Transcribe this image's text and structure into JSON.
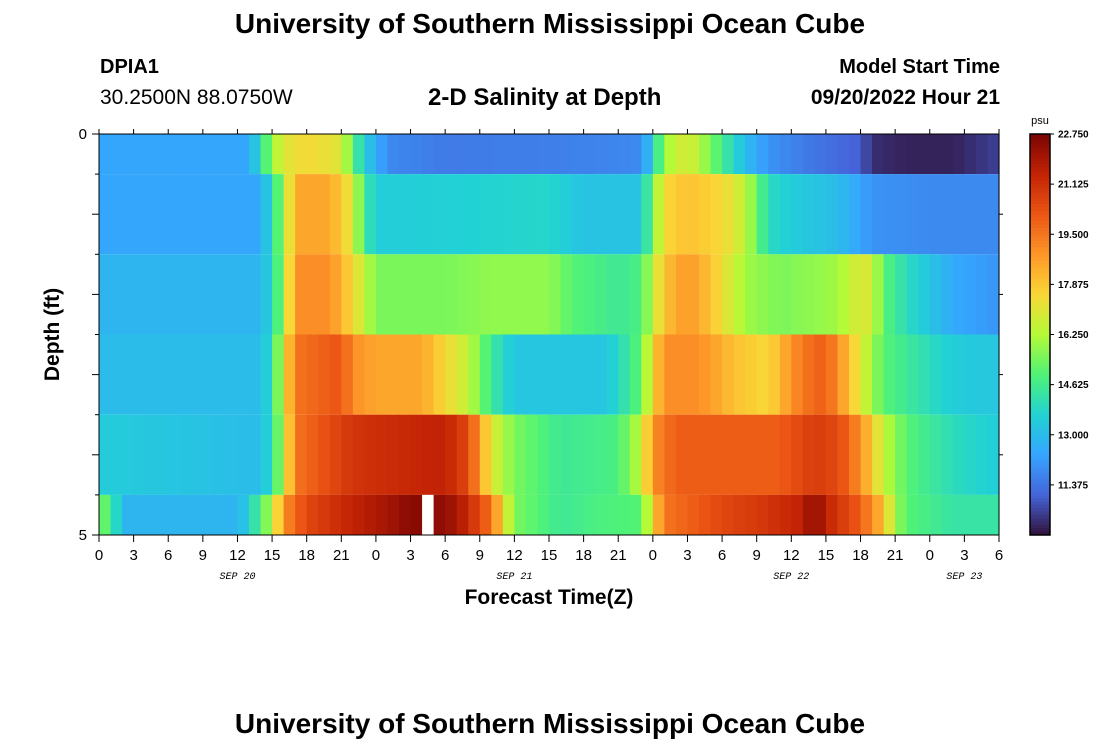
{
  "header": {
    "title": "University of Southern Mississippi Ocean Cube",
    "station": "DPIA1",
    "coords": "30.2500N  88.0750W",
    "subtitle": "2-D Salinity at Depth",
    "model_start_label": "Model Start Time",
    "model_start_value": "09/20/2022 Hour 21"
  },
  "footer": {
    "title": "University of Southern Mississippi Ocean Cube"
  },
  "chart_data": {
    "type": "heatmap",
    "xlabel": "Forecast Time(Z)",
    "ylabel": "Depth (ft)",
    "ylim": [
      5,
      0
    ],
    "y_tick_labels": [
      "0",
      "5"
    ],
    "x_tick_labels": [
      "0",
      "3",
      "6",
      "9",
      "12",
      "15",
      "18",
      "21",
      "0",
      "3",
      "6",
      "9",
      "12",
      "15",
      "18",
      "21",
      "0",
      "3",
      "6",
      "9",
      "12",
      "15",
      "18",
      "21",
      "0",
      "3",
      "6"
    ],
    "date_labels": [
      {
        "label": "SEP 20",
        "hour": 12
      },
      {
        "label": "SEP 21",
        "hour": 36
      },
      {
        "label": "SEP 22",
        "hour": 60
      },
      {
        "label": "SEP 23",
        "hour": 75
      }
    ],
    "x_range_hours": [
      0,
      78
    ],
    "colorbar": {
      "unit": "psu",
      "min": 9.75,
      "max": 22.75,
      "tick_labels": [
        "22.750",
        "21.125",
        "19.500",
        "17.875",
        "16.250",
        "14.625",
        "13.000",
        "11.375"
      ]
    },
    "missing": [
      {
        "hour": 28,
        "depth_layer": 5
      }
    ],
    "layers": [
      {
        "depth_range": [
          0,
          0.5
        ],
        "keyframes": [
          [
            0,
            12.4
          ],
          [
            13,
            12.4
          ],
          [
            14,
            14.0
          ],
          [
            15,
            16.0
          ],
          [
            16,
            17.0
          ],
          [
            18,
            17.5
          ],
          [
            21,
            17.0
          ],
          [
            22,
            15.0
          ],
          [
            23,
            13.5
          ],
          [
            25,
            11.8
          ],
          [
            30,
            11.5
          ],
          [
            40,
            11.6
          ],
          [
            47,
            11.8
          ],
          [
            48,
            13.5
          ],
          [
            49,
            16.0
          ],
          [
            51,
            17.0
          ],
          [
            53,
            15.5
          ],
          [
            56,
            13.0
          ],
          [
            58,
            12.0
          ],
          [
            62,
            11.4
          ],
          [
            66,
            11.0
          ],
          [
            67,
            10.2
          ],
          [
            70,
            10.0
          ],
          [
            74,
            10.0
          ],
          [
            78,
            10.5
          ]
        ]
      },
      {
        "depth_range": [
          0.5,
          1.5
        ],
        "keyframes": [
          [
            0,
            12.4
          ],
          [
            14,
            12.4
          ],
          [
            15,
            14.0
          ],
          [
            16,
            16.0
          ],
          [
            17,
            18.5
          ],
          [
            20,
            18.5
          ],
          [
            22,
            17.0
          ],
          [
            23,
            14.5
          ],
          [
            24,
            13.5
          ],
          [
            30,
            13.6
          ],
          [
            39,
            13.8
          ],
          [
            42,
            13.2
          ],
          [
            47,
            13.2
          ],
          [
            48,
            15.5
          ],
          [
            49,
            17.5
          ],
          [
            51,
            18.0
          ],
          [
            54,
            17.5
          ],
          [
            56,
            16.5
          ],
          [
            58,
            14.0
          ],
          [
            60,
            13.5
          ],
          [
            64,
            13.0
          ],
          [
            67,
            12.0
          ],
          [
            72,
            11.8
          ],
          [
            78,
            11.8
          ]
        ]
      },
      {
        "depth_range": [
          1.5,
          2.5
        ],
        "keyframes": [
          [
            0,
            12.8
          ],
          [
            14,
            12.8
          ],
          [
            15,
            13.8
          ],
          [
            16,
            16.0
          ],
          [
            17,
            19.0
          ],
          [
            20,
            19.0
          ],
          [
            22,
            17.5
          ],
          [
            24,
            15.5
          ],
          [
            30,
            15.5
          ],
          [
            34,
            15.8
          ],
          [
            39,
            15.8
          ],
          [
            41,
            15.0
          ],
          [
            45,
            14.5
          ],
          [
            47,
            14.8
          ],
          [
            48,
            16.5
          ],
          [
            49,
            18.0
          ],
          [
            51,
            18.8
          ],
          [
            53,
            18.0
          ],
          [
            56,
            16.0
          ],
          [
            59,
            15.5
          ],
          [
            64,
            16.0
          ],
          [
            66,
            17.0
          ],
          [
            67,
            16.8
          ],
          [
            68,
            15.0
          ],
          [
            70,
            14.0
          ],
          [
            74,
            12.5
          ],
          [
            78,
            12.0
          ]
        ]
      },
      {
        "depth_range": [
          2.5,
          3.5
        ],
        "keyframes": [
          [
            0,
            13.0
          ],
          [
            14,
            13.0
          ],
          [
            15,
            14.0
          ],
          [
            16,
            17.0
          ],
          [
            17,
            19.5
          ],
          [
            21,
            20.2
          ],
          [
            22,
            19.0
          ],
          [
            24,
            18.5
          ],
          [
            28,
            18.5
          ],
          [
            30,
            17.5
          ],
          [
            32,
            16.5
          ],
          [
            34,
            14.5
          ],
          [
            36,
            13.3
          ],
          [
            44,
            13.3
          ],
          [
            46,
            14.5
          ],
          [
            47,
            15.2
          ],
          [
            48,
            17.5
          ],
          [
            49,
            19.0
          ],
          [
            52,
            19.0
          ],
          [
            55,
            18.0
          ],
          [
            58,
            17.5
          ],
          [
            61,
            19.5
          ],
          [
            63,
            20.0
          ],
          [
            64,
            19.0
          ],
          [
            66,
            17.0
          ],
          [
            68,
            15.0
          ],
          [
            70,
            14.5
          ],
          [
            74,
            13.5
          ],
          [
            78,
            13.3
          ]
        ]
      },
      {
        "depth_range": [
          3.5,
          4.5
        ],
        "keyframes": [
          [
            0,
            13.5
          ],
          [
            14,
            13.0
          ],
          [
            15,
            14.0
          ],
          [
            16,
            16.5
          ],
          [
            17,
            19.5
          ],
          [
            22,
            21.0
          ],
          [
            26,
            21.3
          ],
          [
            30,
            21.5
          ],
          [
            32,
            20.5
          ],
          [
            34,
            17.0
          ],
          [
            36,
            15.5
          ],
          [
            40,
            14.5
          ],
          [
            45,
            14.8
          ],
          [
            47,
            16.5
          ],
          [
            48,
            19.0
          ],
          [
            50,
            20.0
          ],
          [
            56,
            20.0
          ],
          [
            59,
            20.0
          ],
          [
            62,
            20.8
          ],
          [
            64,
            20.5
          ],
          [
            66,
            19.0
          ],
          [
            68,
            16.5
          ],
          [
            70,
            15.0
          ],
          [
            74,
            14.0
          ],
          [
            78,
            13.5
          ]
        ]
      },
      {
        "depth_range": [
          4.5,
          5
        ],
        "keyframes": [
          [
            0,
            15.5
          ],
          [
            1,
            14.8
          ],
          [
            2,
            12.8
          ],
          [
            12,
            12.8
          ],
          [
            13,
            13.5
          ],
          [
            14,
            15.0
          ],
          [
            15,
            16.2
          ],
          [
            16,
            19.0
          ],
          [
            18,
            20.5
          ],
          [
            22,
            21.5
          ],
          [
            25,
            22.0
          ],
          [
            27,
            22.5
          ],
          [
            29,
            22.5
          ],
          [
            31,
            22.0
          ],
          [
            33,
            20.5
          ],
          [
            34,
            19.5
          ],
          [
            35,
            17.5
          ],
          [
            36,
            15.5
          ],
          [
            40,
            14.5
          ],
          [
            43,
            14.8
          ],
          [
            47,
            15.0
          ],
          [
            48,
            17.5
          ],
          [
            49,
            19.5
          ],
          [
            54,
            20.5
          ],
          [
            58,
            21.0
          ],
          [
            61,
            21.5
          ],
          [
            62,
            22.5
          ],
          [
            63,
            21.5
          ],
          [
            66,
            20.0
          ],
          [
            68,
            18.0
          ],
          [
            69,
            16.0
          ],
          [
            70,
            15.0
          ],
          [
            74,
            14.3
          ],
          [
            78,
            14.3
          ]
        ]
      }
    ]
  }
}
